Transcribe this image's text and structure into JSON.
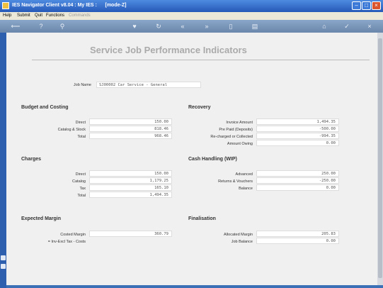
{
  "window": {
    "title": "IES Navigator Client v8.04 : My IES :",
    "mode": "[mode-Z]"
  },
  "menu": [
    "Help",
    "Submit",
    "Quit",
    "Functions",
    "Commands"
  ],
  "page_title": "Service Job Performance Indicators",
  "job": {
    "label": "Job Name",
    "value": "SJ00002 Car Service - General"
  },
  "budget": {
    "heading": "Budget and Costing",
    "rows": [
      {
        "label": "Direct",
        "value": "150.00"
      },
      {
        "label": "Catalog & Stock",
        "value": "818.46"
      },
      {
        "label": "Total",
        "value": "968.46"
      }
    ]
  },
  "recovery": {
    "heading": "Recovery",
    "rows": [
      {
        "label": "Invoice Amount",
        "value": "1,494.35"
      },
      {
        "label": "Pre Paid (Deposits)",
        "value": "-500.00"
      },
      {
        "label": "Re-charged or Collected",
        "value": "-994.35"
      },
      {
        "label": "Amount Owing",
        "value": "0.00"
      }
    ]
  },
  "charges": {
    "heading": "Charges",
    "rows": [
      {
        "label": "Direct",
        "value": "150.00"
      },
      {
        "label": "Catalog",
        "value": "1,179.25"
      },
      {
        "label": "Tax",
        "value": "165.10"
      },
      {
        "label": "Total",
        "value": "1,494.35"
      }
    ]
  },
  "cash": {
    "heading": "Cash Handling (WIP)",
    "rows": [
      {
        "label": "Advanced",
        "value": "250.00"
      },
      {
        "label": "Returns & Vouchers",
        "value": "-250.00"
      },
      {
        "label": "Balance",
        "value": "0.00"
      }
    ]
  },
  "margin": {
    "heading": "Expected Margin",
    "rows": [
      {
        "label": "Costed Margin",
        "value": "360.79"
      },
      {
        "label": "= Inv-Excl Tax - Costs",
        "value": ""
      }
    ]
  },
  "final": {
    "heading": "Finalisation",
    "rows": [
      {
        "label": "Allocated Margin",
        "value": "205.83"
      },
      {
        "label": "Job Balance",
        "value": "0.00"
      }
    ]
  }
}
